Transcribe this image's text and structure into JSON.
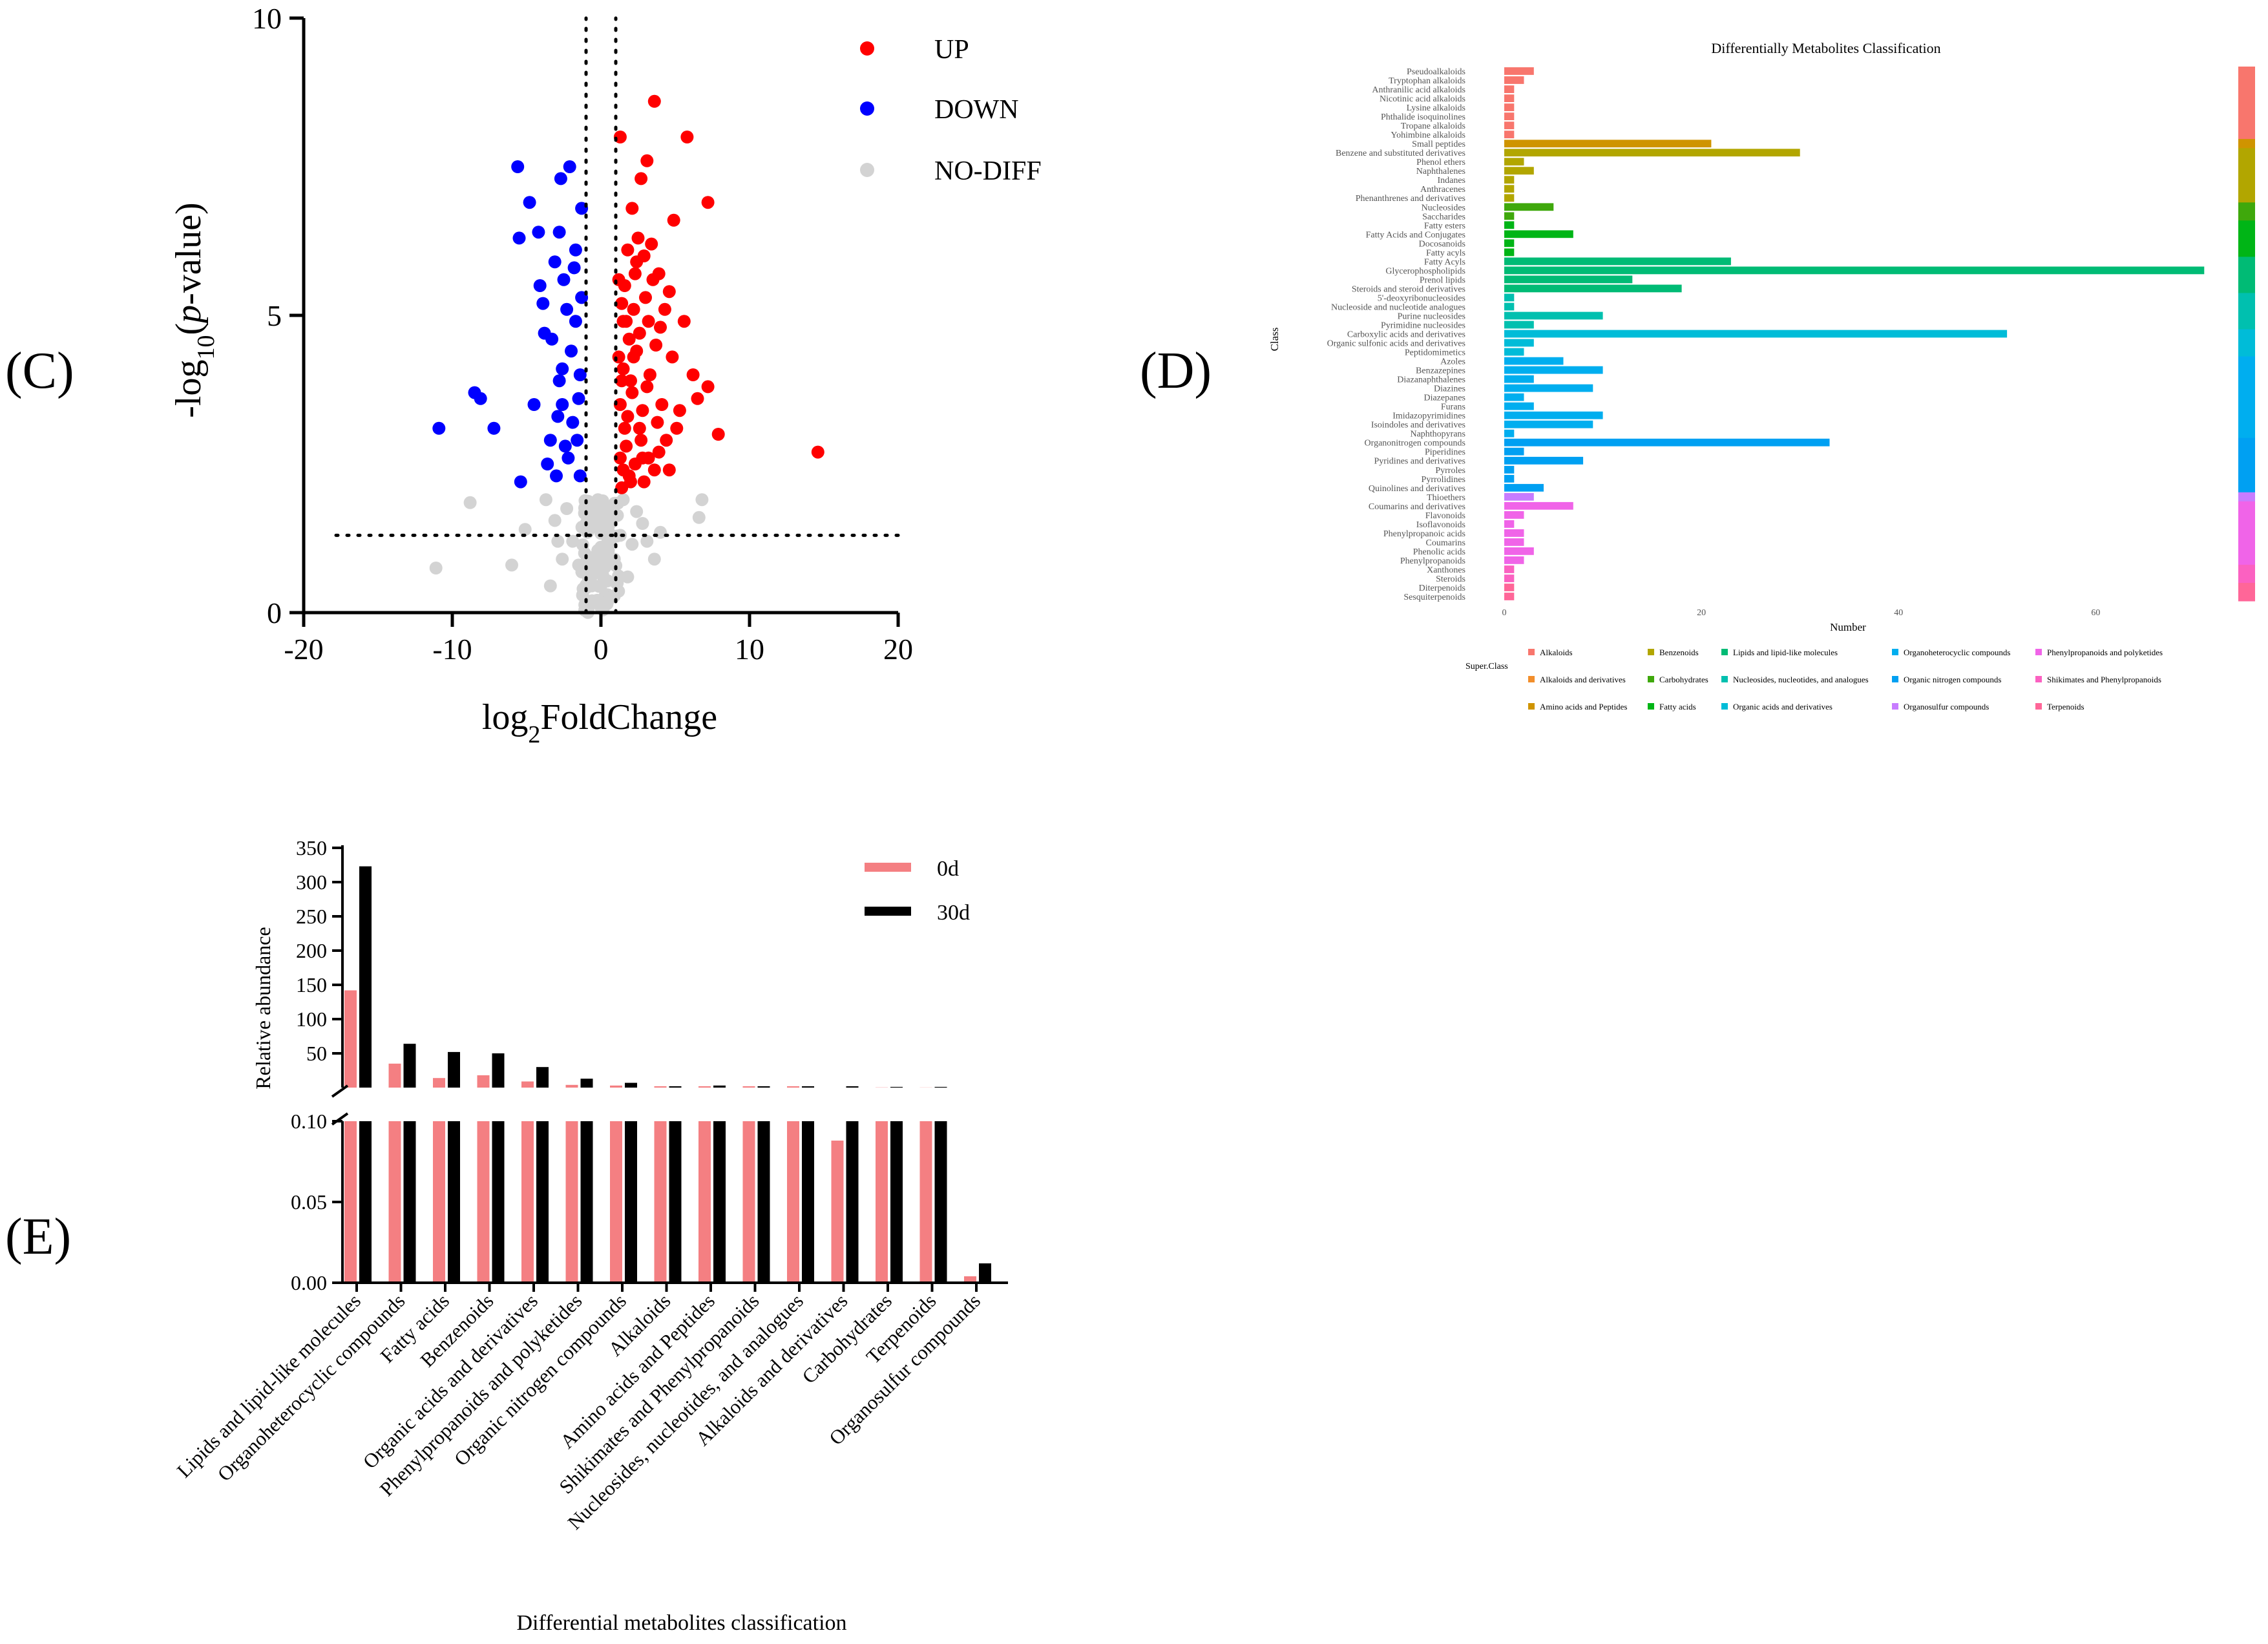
{
  "panel_labels": {
    "c": "(C)",
    "d": "(D)",
    "e": "(E)"
  },
  "chart_data": [
    {
      "panel": "C",
      "type": "scatter",
      "xlabel_main": "log",
      "xlabel_sub": "2",
      "xlabel_rest": "FoldChange",
      "ylabel_pre": "-log",
      "ylabel_sub": "10",
      "ylabel_mid": "(",
      "ylabel_italic": "p",
      "ylabel_post": "-value)",
      "xlim": [
        -20,
        20
      ],
      "ylim": [
        0,
        10
      ],
      "xticks": [
        "-20",
        "-10",
        "0",
        "10",
        "20"
      ],
      "yticks": [
        "0",
        "5",
        "10"
      ],
      "fc_threshold": [
        -1,
        1
      ],
      "p_threshold": 1.3,
      "legend": [
        {
          "label": "UP",
          "color": "#ff0000"
        },
        {
          "label": "DOWN",
          "color": "#0000ff"
        },
        {
          "label": "NO-DIFF",
          "color": "#d3d3d3"
        }
      ],
      "series": [
        {
          "name": "UP",
          "color": "#ff0000",
          "points": [
            [
              14.6,
              2.7
            ],
            [
              7.9,
              3.0
            ],
            [
              7.2,
              3.8
            ],
            [
              6.2,
              4.0
            ],
            [
              5.8,
              8.0
            ],
            [
              7.2,
              6.9
            ],
            [
              3.6,
              8.6
            ],
            [
              3.1,
              7.6
            ],
            [
              2.7,
              7.3
            ],
            [
              1.3,
              8.0
            ],
            [
              2.1,
              6.8
            ],
            [
              4.9,
              6.6
            ],
            [
              6.5,
              3.6
            ],
            [
              5.1,
              3.1
            ],
            [
              4.6,
              2.4
            ],
            [
              3.9,
              5.7
            ],
            [
              4.3,
              5.1
            ],
            [
              5.6,
              4.9
            ],
            [
              2.2,
              4.3
            ],
            [
              1.4,
              2.1
            ],
            [
              1.9,
              2.3
            ],
            [
              3.2,
              2.6
            ],
            [
              1.5,
              4.9
            ],
            [
              2.8,
              3.4
            ],
            [
              3.7,
              4.5
            ],
            [
              1.2,
              5.6
            ],
            [
              2.4,
              5.9
            ],
            [
              1.6,
              3.1
            ],
            [
              2.9,
              2.2
            ],
            [
              4.1,
              3.5
            ],
            [
              1.8,
              6.1
            ],
            [
              3.4,
              6.2
            ],
            [
              2.0,
              3.9
            ],
            [
              1.3,
              3.5
            ],
            [
              2.6,
              4.7
            ],
            [
              3.0,
              5.3
            ],
            [
              1.7,
              2.8
            ],
            [
              4.4,
              2.9
            ],
            [
              2.3,
              2.5
            ],
            [
              1.5,
              4.1
            ],
            [
              3.8,
              3.2
            ],
            [
              2.5,
              6.3
            ],
            [
              1.4,
              5.2
            ],
            [
              2.1,
              3.7
            ],
            [
              3.3,
              4.0
            ],
            [
              1.9,
              4.6
            ],
            [
              2.7,
              2.9
            ],
            [
              4.8,
              4.3
            ],
            [
              1.6,
              5.5
            ],
            [
              3.6,
              2.4
            ],
            [
              2.2,
              5.1
            ],
            [
              1.3,
              2.6
            ],
            [
              3.1,
              3.8
            ],
            [
              2.0,
              2.2
            ],
            [
              4.0,
              4.8
            ],
            [
              1.8,
              3.3
            ],
            [
              2.9,
              6.0
            ],
            [
              1.5,
              2.4
            ],
            [
              3.5,
              5.6
            ],
            [
              2.4,
              4.4
            ],
            [
              1.2,
              4.3
            ],
            [
              5.3,
              3.4
            ],
            [
              2.6,
              3.1
            ],
            [
              1.7,
              4.9
            ],
            [
              3.9,
              2.7
            ],
            [
              2.3,
              5.7
            ],
            [
              4.6,
              5.4
            ],
            [
              1.4,
              3.9
            ],
            [
              3.2,
              4.9
            ],
            [
              2.8,
              2.6
            ]
          ]
        },
        {
          "name": "DOWN",
          "color": "#0000ff",
          "points": [
            [
              -10.9,
              3.1
            ],
            [
              -8.5,
              3.7
            ],
            [
              -8.1,
              3.6
            ],
            [
              -7.2,
              3.1
            ],
            [
              -5.6,
              7.5
            ],
            [
              -4.8,
              6.9
            ],
            [
              -5.5,
              6.3
            ],
            [
              -4.2,
              6.4
            ],
            [
              -2.7,
              7.3
            ],
            [
              -2.1,
              7.5
            ],
            [
              -1.3,
              6.8
            ],
            [
              -2.8,
              6.4
            ],
            [
              -4.5,
              3.5
            ],
            [
              -5.4,
              2.2
            ],
            [
              -3.9,
              5.2
            ],
            [
              -3.3,
              4.6
            ],
            [
              -2.5,
              5.6
            ],
            [
              -1.7,
              4.9
            ],
            [
              -2.9,
              3.3
            ],
            [
              -1.4,
              2.3
            ],
            [
              -2.2,
              2.6
            ],
            [
              -3.6,
              2.5
            ],
            [
              -1.8,
              5.8
            ],
            [
              -2.6,
              4.1
            ],
            [
              -1.5,
              3.6
            ],
            [
              -3.1,
              5.9
            ],
            [
              -2.0,
              4.4
            ],
            [
              -1.6,
              2.9
            ],
            [
              -3.8,
              4.7
            ],
            [
              -2.4,
              2.8
            ],
            [
              -1.3,
              5.3
            ],
            [
              -2.8,
              3.9
            ],
            [
              -4.1,
              5.5
            ],
            [
              -1.9,
              3.2
            ],
            [
              -3.4,
              2.9
            ],
            [
              -1.4,
              4.0
            ],
            [
              -2.3,
              5.1
            ],
            [
              -3.0,
              2.3
            ],
            [
              -1.7,
              6.1
            ],
            [
              -2.6,
              3.5
            ]
          ]
        },
        {
          "name": "NO-DIFF",
          "color": "#d3d3d3",
          "points": [
            [
              -11.1,
              0.75
            ],
            [
              -8.8,
              1.85
            ],
            [
              -6.0,
              0.8
            ],
            [
              -5.1,
              1.4
            ],
            [
              -3.7,
              1.9
            ],
            [
              -3.1,
              1.55
            ],
            [
              -2.6,
              0.9
            ],
            [
              -1.9,
              1.2
            ],
            [
              -1.2,
              0.4
            ],
            [
              -0.8,
              1.6
            ],
            [
              -0.4,
              0.7
            ],
            [
              0.0,
              1.1
            ],
            [
              0.3,
              0.3
            ],
            [
              0.6,
              1.5
            ],
            [
              0.9,
              0.9
            ],
            [
              1.3,
              1.3
            ],
            [
              1.8,
              0.6
            ],
            [
              2.4,
              1.7
            ],
            [
              3.1,
              1.2
            ],
            [
              4.0,
              1.35
            ],
            [
              6.6,
              1.6
            ],
            [
              6.8,
              1.9
            ],
            [
              -3.4,
              0.45
            ],
            [
              -0.2,
              1.9
            ],
            [
              0.4,
              0.15
            ],
            [
              -0.6,
              0.2
            ],
            [
              1.1,
              0.5
            ],
            [
              2.1,
              1.15
            ],
            [
              -1.5,
              0.8
            ],
            [
              -2.3,
              1.75
            ],
            [
              0.8,
              1.8
            ],
            [
              3.6,
              0.9
            ],
            [
              -0.9,
              1.35
            ],
            [
              0.2,
              0.55
            ],
            [
              -0.1,
              1.4
            ],
            [
              1.5,
              1.9
            ],
            [
              -1.1,
              1.0
            ],
            [
              2.8,
              1.5
            ],
            [
              -2.9,
              1.2
            ],
            [
              0.5,
              1.05
            ]
          ]
        }
      ]
    },
    {
      "panel": "D",
      "type": "bar",
      "orientation": "horizontal",
      "title": "Differentially Metabolites Classification",
      "xlabel": "Number",
      "ylabel": "Class",
      "xlim": [
        0,
        70
      ],
      "xticks": [
        "0",
        "20",
        "40",
        "60"
      ],
      "categories": [
        "Pseudoalkaloids",
        "Tryptophan alkaloids",
        "Anthranilic acid alkaloids",
        "Nicotinic acid alkaloids",
        "Lysine alkaloids",
        "Phthalide isoquinolines",
        "Tropane alkaloids",
        "Yohimbine alkaloids",
        "Small peptides",
        "Benzene and substituted derivatives",
        "Phenol ethers",
        "Naphthalenes",
        "Indanes",
        "Anthracenes",
        "Phenanthrenes and derivatives",
        "Nucleosides",
        "Saccharides",
        "Fatty esters",
        "Fatty Acids and Conjugates",
        "Docosanoids",
        "Fatty acyls",
        "Fatty Acyls",
        "Glycerophospholipids",
        "Prenol lipids",
        "Steroids and steroid derivatives",
        "5'-deoxyribonucleosides",
        "Nucleoside and nucleotide analogues",
        "Purine nucleosides",
        "Pyrimidine nucleosides",
        "Carboxylic acids and derivatives",
        "Organic sulfonic acids and derivatives",
        "Peptidomimetics",
        "Azoles",
        "Benzazepines",
        "Diazanaphthalenes",
        "Diazines",
        "Diazepanes",
        "Furans",
        "Imidazopyrimidines",
        "Isoindoles and derivatives",
        "Naphthopyrans",
        "Organonitrogen compounds",
        "Piperidines",
        "Pyridines and derivatives",
        "Pyrroles",
        "Pyrrolidines",
        "Quinolines and derivatives",
        "Thioethers",
        "Coumarins and derivatives",
        "Flavonoids",
        "Isoflavonoids",
        "Phenylpropanoic acids",
        "Coumarins",
        "Phenolic acids",
        "Phenylpropanoids",
        "Xanthones",
        "Steroids",
        "Diterpenoids",
        "Sesquiterpenoids"
      ],
      "values": [
        3,
        2,
        1,
        1,
        1,
        1,
        1,
        1,
        21,
        30,
        2,
        3,
        1,
        1,
        1,
        5,
        1,
        1,
        7,
        1,
        1,
        23,
        71,
        13,
        18,
        1,
        1,
        10,
        3,
        51,
        3,
        2,
        6,
        10,
        3,
        9,
        2,
        3,
        10,
        9,
        1,
        33,
        2,
        8,
        1,
        1,
        4,
        3,
        7,
        2,
        1,
        2,
        2,
        3,
        2,
        1,
        1,
        1,
        1
      ],
      "super_class_index": [
        0,
        0,
        0,
        0,
        0,
        0,
        0,
        0,
        2,
        3,
        3,
        3,
        3,
        3,
        3,
        4,
        4,
        5,
        5,
        5,
        5,
        6,
        6,
        6,
        6,
        7,
        7,
        7,
        7,
        8,
        8,
        8,
        9,
        9,
        9,
        9,
        9,
        9,
        9,
        9,
        9,
        10,
        10,
        10,
        10,
        10,
        10,
        11,
        12,
        12,
        12,
        12,
        12,
        12,
        12,
        13,
        13,
        14,
        14
      ],
      "legend_title": "Super.Class",
      "super_classes": [
        {
          "name": "Alkaloids",
          "color": "#f8766d"
        },
        {
          "name": "Alkaloids and derivatives",
          "color": "#f28e2b"
        },
        {
          "name": "Amino acids and Peptides",
          "color": "#cf9400"
        },
        {
          "name": "Benzenoids",
          "color": "#b2a600"
        },
        {
          "name": "Carbohydrates",
          "color": "#3fa80c"
        },
        {
          "name": "Fatty acids",
          "color": "#00b516"
        },
        {
          "name": "Lipids and lipid-like molecules",
          "color": "#00bb75"
        },
        {
          "name": "Nucleosides, nucleotides, and analogues",
          "color": "#00c0af"
        },
        {
          "name": "Organic acids and derivatives",
          "color": "#00bcd8"
        },
        {
          "name": "Organoheterocyclic compounds",
          "color": "#00aeef"
        },
        {
          "name": "Organic nitrogen compounds",
          "color": "#00a0f2"
        },
        {
          "name": "Organosulfur compounds",
          "color": "#c77cff"
        },
        {
          "name": "Phenylpropanoids and polyketides",
          "color": "#f064e8"
        },
        {
          "name": "Shikimates and Phenylpropanoids",
          "color": "#fb61c1"
        },
        {
          "name": "Terpenoids",
          "color": "#ff6698"
        }
      ],
      "legend_order": [
        0,
        3,
        6,
        9,
        12,
        1,
        4,
        7,
        10,
        13,
        2,
        5,
        8,
        11,
        14
      ]
    },
    {
      "panel": "E",
      "type": "bar",
      "broken_axis": true,
      "xlabel": "Differential metabolites classification",
      "ylabel": "Relative abundance",
      "upper_yticks": [
        "50",
        "100",
        "150",
        "200",
        "250",
        "300",
        "350"
      ],
      "lower_yticks": [
        "0.00",
        "0.05",
        "0.10"
      ],
      "upper_ylim": [
        0,
        350
      ],
      "lower_ylim": [
        0,
        0.1
      ],
      "categories": [
        "Lipids and lipid-like molecules",
        "Organoheterocyclic compounds",
        "Fatty acids",
        "Benzenoids",
        "Organic acids and derivatives",
        "Phenylpropanoids and polyketides",
        "Organic nitrogen compounds",
        "Alkaloids",
        "Amino acids and Peptides",
        "Shikimates and Phenylpropanoids",
        "Nucleosides, nucleotides, and analogues",
        "Alkaloids and derivatives",
        "Carbohydrates",
        "Terpenoids",
        "Organosulfur compounds"
      ],
      "series": [
        {
          "name": "0d",
          "color": "#f47f82",
          "values": [
            142,
            35,
            14,
            18,
            9,
            4,
            3,
            2,
            2,
            2,
            2,
            0.088,
            0.3,
            0.2,
            0.004
          ]
        },
        {
          "name": "30d",
          "color": "#000000",
          "values": [
            323,
            64,
            52,
            50,
            30,
            13,
            7,
            2,
            3,
            2,
            2,
            2,
            1,
            1,
            0.012
          ]
        }
      ]
    }
  ]
}
